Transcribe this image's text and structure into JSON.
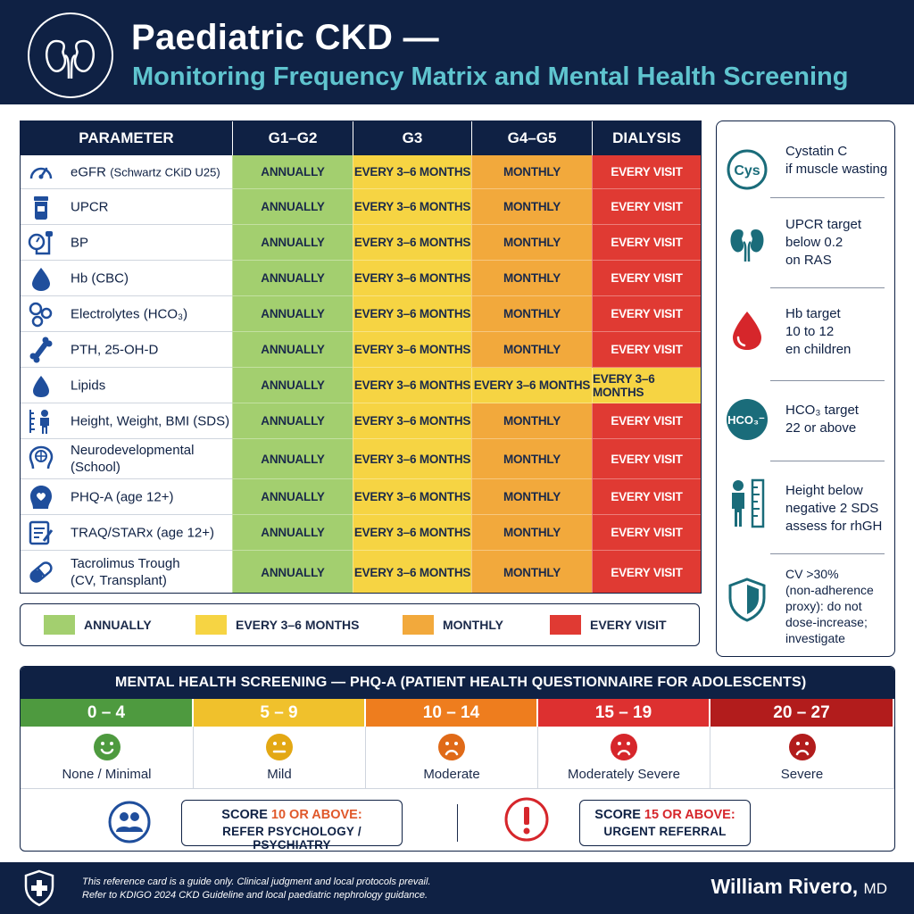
{
  "header": {
    "title": "Paediatric CKD —",
    "subtitle": "Monitoring Frequency Matrix and Mental Health Screening"
  },
  "matrix": {
    "headers": [
      "PARAMETER",
      "G1–G2",
      "G3",
      "G4–G5",
      "DIALYSIS"
    ],
    "rows": [
      {
        "icon": "gauge-icon",
        "label": "eGFR",
        "label_small": "(Schwartz CKiD U25)",
        "cells": [
          "ANNUALLY",
          "EVERY 3–6 MONTHS",
          "MONTHLY",
          "EVERY VISIT"
        ]
      },
      {
        "icon": "urine-cup-icon",
        "label": "UPCR",
        "label_small": "",
        "cells": [
          "ANNUALLY",
          "EVERY 3–6 MONTHS",
          "MONTHLY",
          "EVERY VISIT"
        ]
      },
      {
        "icon": "blood-pressure-icon",
        "label": "BP",
        "label_small": "",
        "cells": [
          "ANNUALLY",
          "EVERY 3–6 MONTHS",
          "MONTHLY",
          "EVERY VISIT"
        ]
      },
      {
        "icon": "blood-drop-icon",
        "label": "Hb (CBC)",
        "label_small": "",
        "cells": [
          "ANNUALLY",
          "EVERY 3–6 MONTHS",
          "MONTHLY",
          "EVERY VISIT"
        ]
      },
      {
        "icon": "molecule-icon",
        "label": "Electrolytes (HCO₃)",
        "label_small": "",
        "cells": [
          "ANNUALLY",
          "EVERY 3–6 MONTHS",
          "MONTHLY",
          "EVERY VISIT"
        ]
      },
      {
        "icon": "bone-icon",
        "label": "PTH, 25-OH-D",
        "label_small": "",
        "cells": [
          "ANNUALLY",
          "EVERY 3–6 MONTHS",
          "MONTHLY",
          "EVERY VISIT"
        ]
      },
      {
        "icon": "lipid-drop-icon",
        "label": "Lipids",
        "label_small": "",
        "cells": [
          "ANNUALLY",
          "EVERY 3–6 MONTHS",
          "EVERY 3–6 MONTHS",
          "EVERY 3–6 MONTHS"
        ]
      },
      {
        "icon": "growth-icon",
        "label": "Height, Weight, BMI (SDS)",
        "label_small": "",
        "cells": [
          "ANNUALLY",
          "EVERY 3–6 MONTHS",
          "MONTHLY",
          "EVERY VISIT"
        ]
      },
      {
        "icon": "brain-head-icon",
        "label": "Neurodevelopmental\n(School)",
        "label_small": "",
        "cells": [
          "ANNUALLY",
          "EVERY 3–6 MONTHS",
          "MONTHLY",
          "EVERY VISIT"
        ]
      },
      {
        "icon": "heart-head-icon",
        "label": "PHQ-A (age 12+)",
        "label_small": "",
        "cells": [
          "ANNUALLY",
          "EVERY 3–6 MONTHS",
          "MONTHLY",
          "EVERY VISIT"
        ]
      },
      {
        "icon": "checklist-icon",
        "label": "TRAQ/STARx (age 12+)",
        "label_small": "",
        "cells": [
          "ANNUALLY",
          "EVERY 3–6 MONTHS",
          "MONTHLY",
          "EVERY VISIT"
        ]
      },
      {
        "icon": "pill-icon",
        "label": "Tacrolimus Trough\n(CV, Transplant)",
        "label_small": "",
        "cells": [
          "ANNUALLY",
          "EVERY 3–6 MONTHS",
          "MONTHLY",
          "EVERY VISIT"
        ]
      }
    ]
  },
  "legend": {
    "items": [
      {
        "label": "ANNUALLY",
        "color": "#a3cf6f"
      },
      {
        "label": "EVERY 3–6 MONTHS",
        "color": "#f6d443"
      },
      {
        "label": "MONTHLY",
        "color": "#f2a93c"
      },
      {
        "label": "EVERY VISIT",
        "color": "#e03a33"
      }
    ]
  },
  "sidebar": {
    "items": [
      {
        "icon": "cys-badge-icon",
        "icon_text": "Cys",
        "text": "Cystatin C\nif muscle wasting"
      },
      {
        "icon": "kidney-icon",
        "icon_text": "",
        "text": "UPCR target\nbelow 0.2\non RAS"
      },
      {
        "icon": "blood-drop-icon",
        "icon_text": "",
        "text": "Hb target\n10 to 12\nen children"
      },
      {
        "icon": "hco3-badge-icon",
        "icon_text": "HCO₃⁻",
        "text": "HCO₃ target\n22 or above"
      },
      {
        "icon": "child-height-icon",
        "icon_text": "",
        "text": "Height below\nnegative 2 SDS\nassess for rhGH"
      },
      {
        "icon": "shield-icon",
        "icon_text": "",
        "text": "CV >30%\n(non-adherence\nproxy): do not\ndose-increase;\ninvestigate"
      }
    ]
  },
  "mental_health": {
    "title": "MENTAL HEALTH SCREENING — PHQ-A  (PATIENT HEALTH QUESTIONNAIRE FOR ADOLESCENTS)",
    "bands": [
      {
        "range": "0 – 4",
        "label": "None / Minimal",
        "color": "#4e9a3f",
        "face": "happy"
      },
      {
        "range": "5 – 9",
        "label": "Mild",
        "color": "#f0c12c",
        "face": "neutral"
      },
      {
        "range": "10 – 14",
        "label": "Moderate",
        "color": "#ee7d1e",
        "face": "sad"
      },
      {
        "range": "15 – 19",
        "label": "Moderately Severe",
        "color": "#dd3030",
        "face": "sad"
      },
      {
        "range": "20 – 27",
        "label": "Severe",
        "color": "#b21c1c",
        "face": "sad"
      }
    ],
    "referral_1": {
      "prefix": "SCORE ",
      "highlight": "10 OR ABOVE:",
      "line2": "REFER PSYCHOLOGY / PSYCHIATRY"
    },
    "referral_2": {
      "prefix": "SCORE ",
      "highlight": "15 OR ABOVE:",
      "line2": "URGENT REFERRAL"
    }
  },
  "footer": {
    "disclaimer": "This reference card is a guide only. Clinical judgment and local protocols prevail.\nRefer to KDIGO 2024 CKD Guideline and local paediatric nephrology guidance.",
    "author": "William Rivero,",
    "credential": "MD"
  }
}
